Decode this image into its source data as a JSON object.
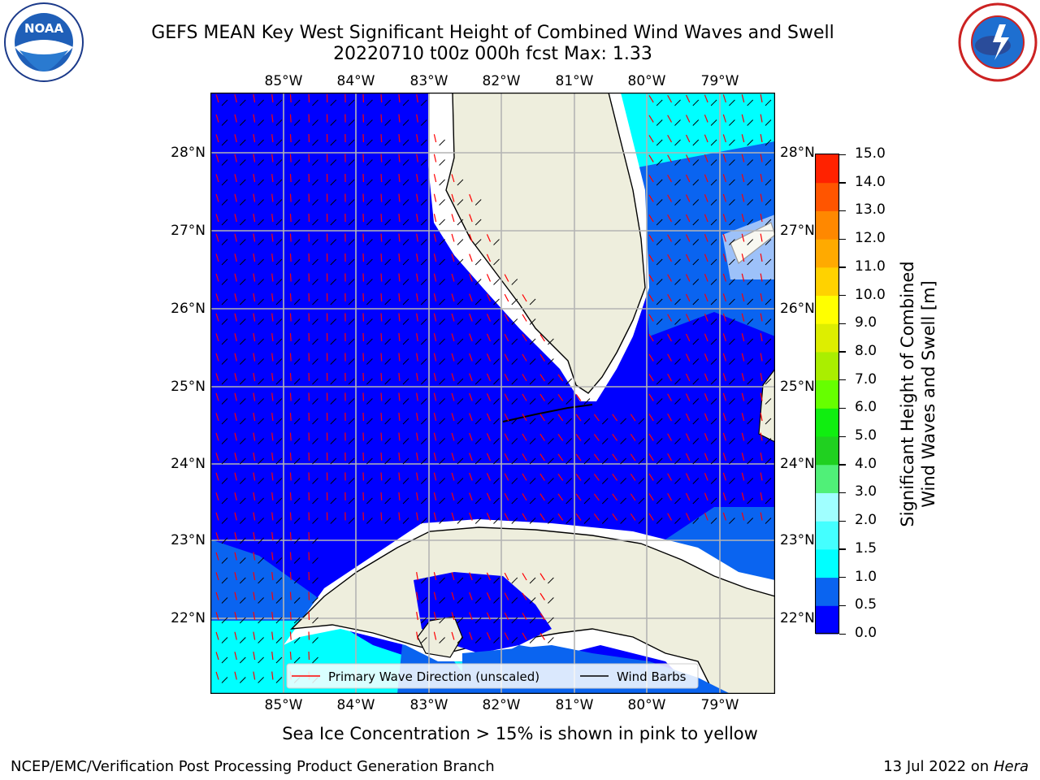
{
  "header": {
    "title_line1": "GEFS MEAN Key West Significant Height of Combined Wind Waves and Swell",
    "title_line2": "20220710 t00z 000h fcst   Max: 1.33",
    "left_logo_text": "NOAA",
    "left_logo_ring": "NATIONAL OCEANIC AND ATMOSPHERIC ADMINISTRATION · U.S. DEPARTMENT OF COMMERCE",
    "right_logo_ring": "NATIONAL WEATHER SERVICE"
  },
  "map": {
    "lon_labels": [
      "85°W",
      "84°W",
      "83°W",
      "82°W",
      "81°W",
      "80°W",
      "79°W"
    ],
    "lat_labels": [
      "28°N",
      "27°N",
      "26°N",
      "25°N",
      "24°N",
      "23°N",
      "22°N"
    ],
    "legend": {
      "primary_wave": "Primary Wave Direction (unscaled)",
      "wind_barbs": "Wind Barbs"
    },
    "colors": {
      "ocean_low": "#0000ff",
      "ocean_mid": "#0a64f0",
      "ocean_high": "#00ffff",
      "land": "#eeeedd",
      "wave_arrow": "#ff0000"
    }
  },
  "colorbar": {
    "label_line1": "Significant Height of Combined",
    "label_line2": "Wind Waves and Swell [m]",
    "ticks": [
      "0.0",
      "0.5",
      "1.0",
      "1.5",
      "2.0",
      "3.0",
      "4.0",
      "5.0",
      "6.0",
      "7.0",
      "8.0",
      "9.0",
      "10.0",
      "11.0",
      "12.0",
      "13.0",
      "14.0",
      "15.0"
    ],
    "colors": [
      "#0000ff",
      "#0a64f0",
      "#00ffff",
      "#44ffff",
      "#a0ffff",
      "#50f078",
      "#20d020",
      "#10ee10",
      "#66ff00",
      "#aaee00",
      "#ddee00",
      "#ffff00",
      "#ffd200",
      "#ffaa00",
      "#ff8800",
      "#ff5500",
      "#ff2200"
    ]
  },
  "footer": {
    "ice_note": "Sea Ice Concentration > 15% is shown in pink to yellow",
    "credit": "NCEP/EMC/Verification Post Processing Product Generation Branch",
    "date": "13 Jul 2022 on",
    "host": "Hera"
  }
}
